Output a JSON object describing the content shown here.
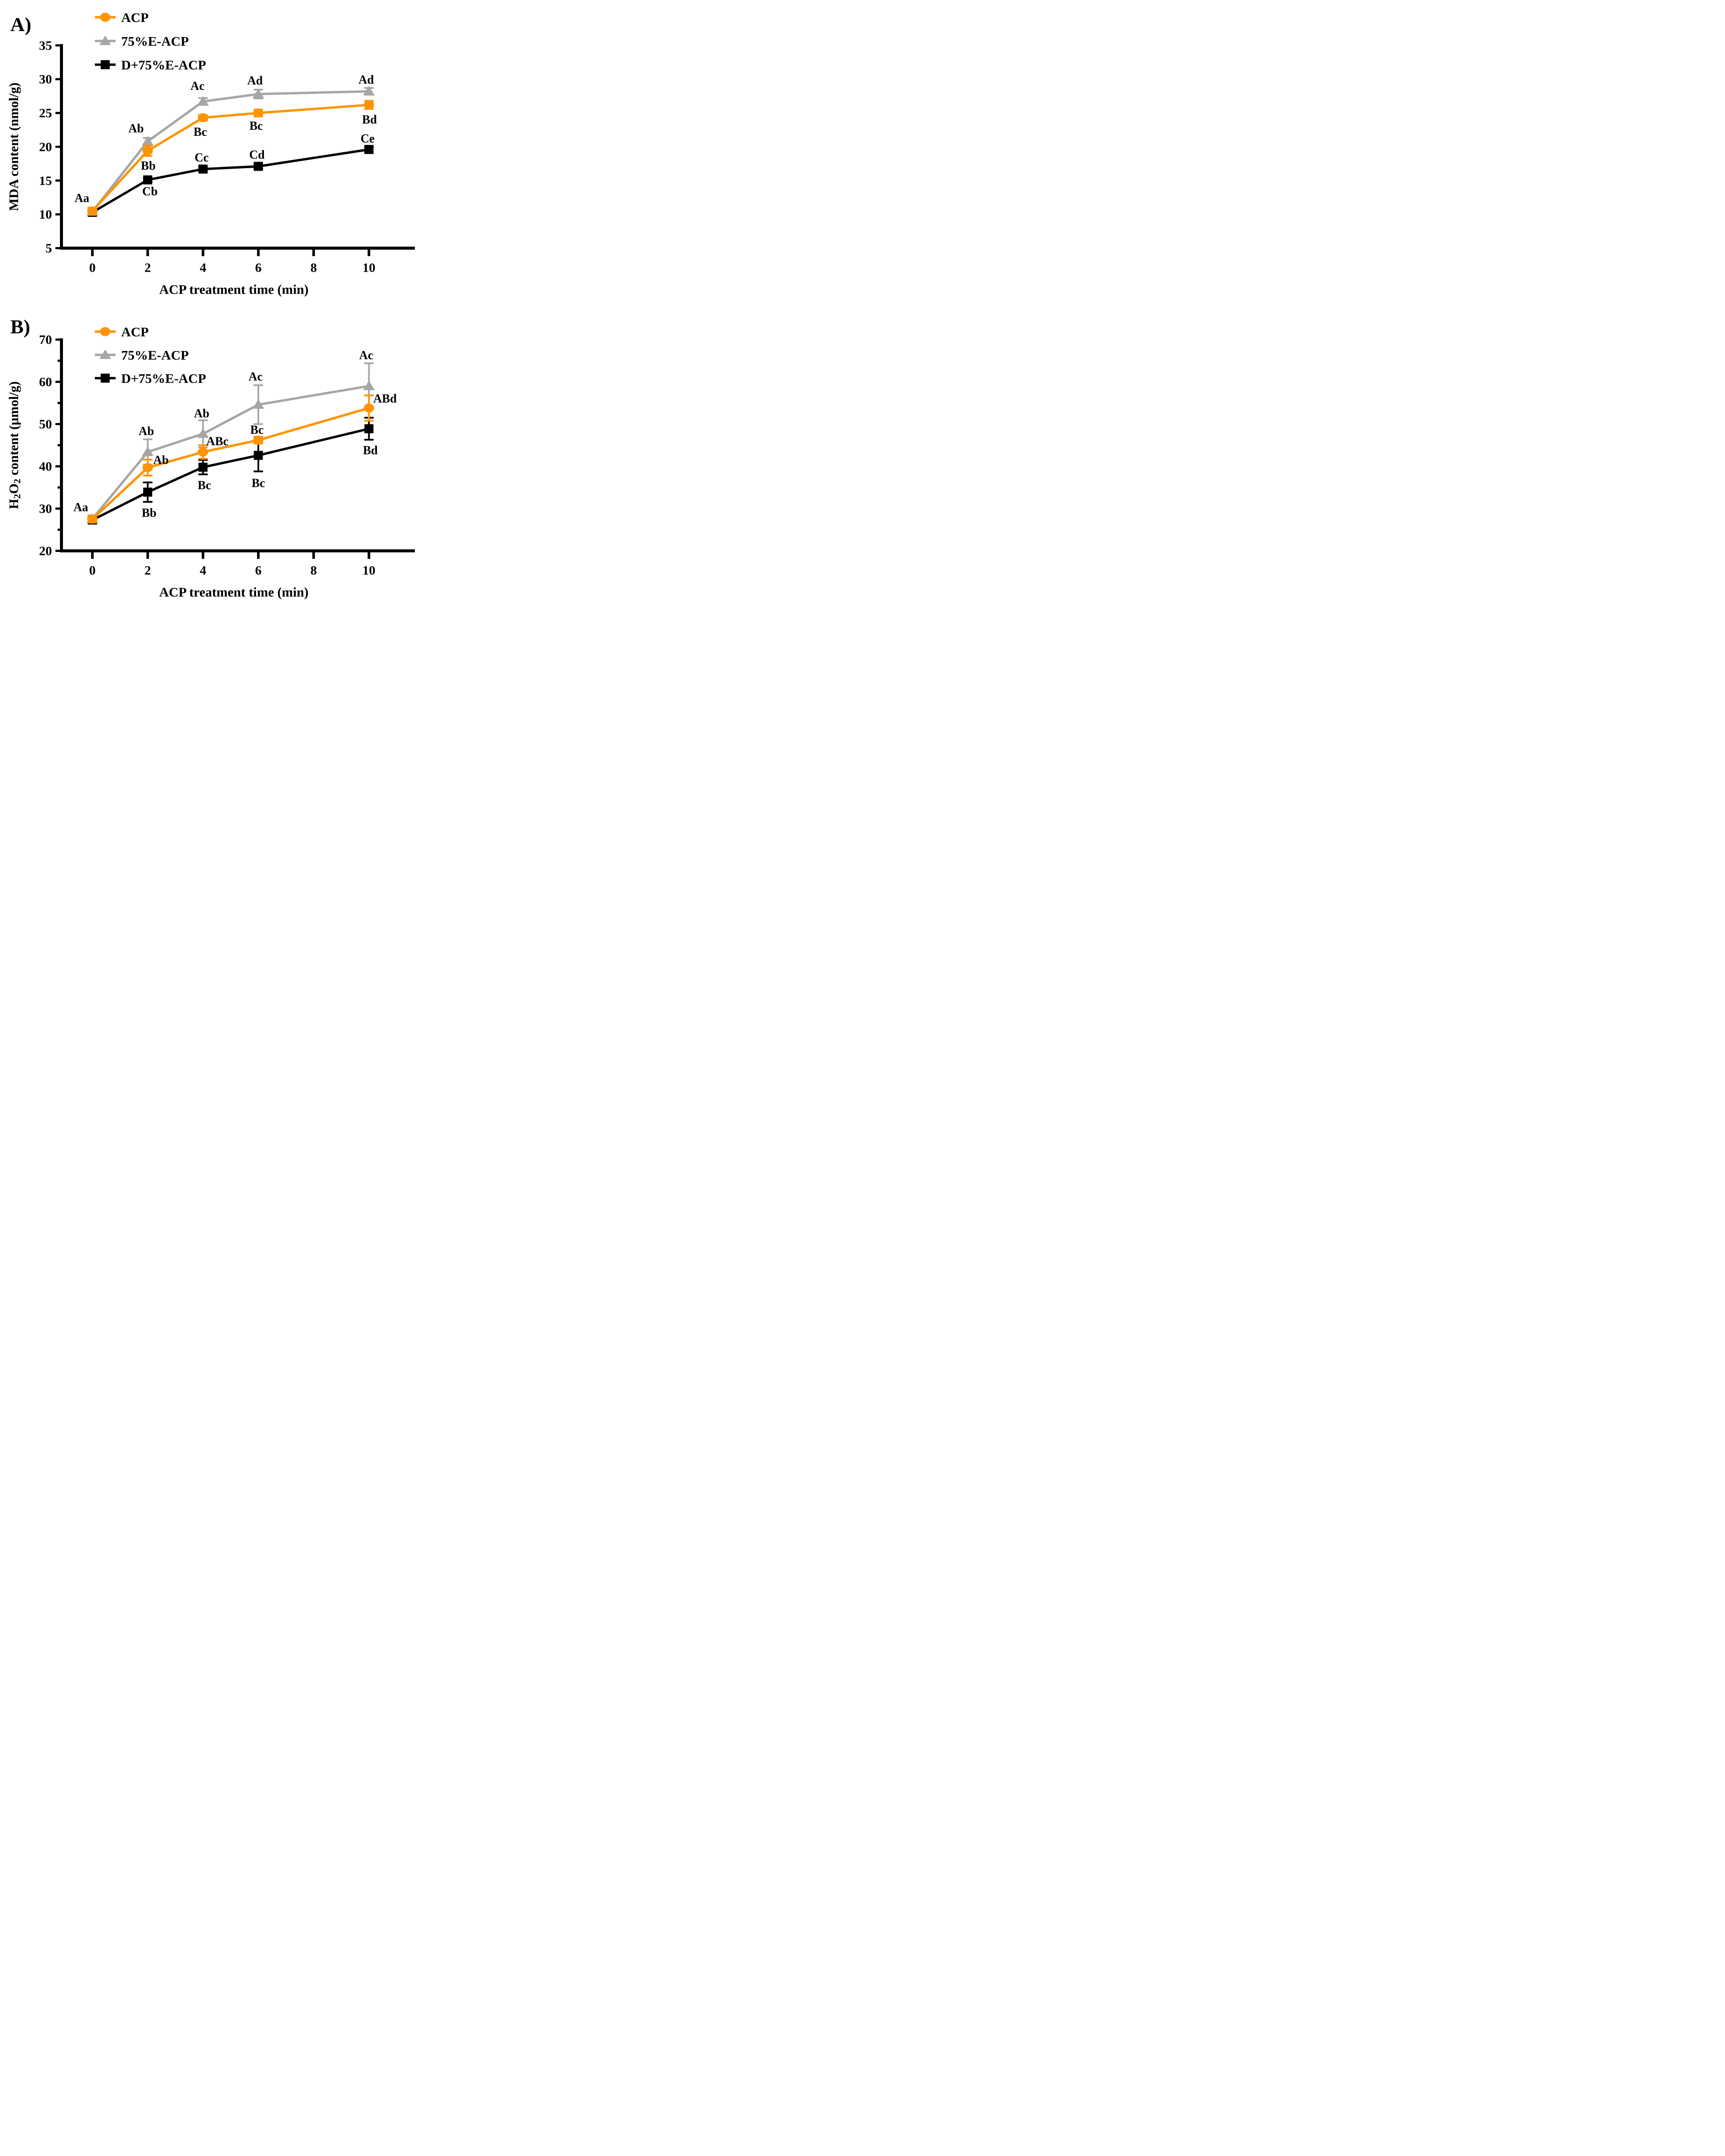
{
  "figure_title": "",
  "chart_data": [
    {
      "id": "A",
      "panel_label": "A)",
      "type": "line",
      "xlabel": "ACP treatment time (min)",
      "ylabel_parts": [
        {
          "t": "MDA content (nmol/g)",
          "sub": false
        }
      ],
      "x_ticks": [
        0,
        2,
        4,
        6,
        8,
        10
      ],
      "x": [
        0,
        2,
        4,
        6,
        10
      ],
      "ylim": [
        5,
        35
      ],
      "y_major_step": 5,
      "y_minor_step": 0,
      "grid": "off",
      "legend_position": "top-left-inside",
      "series": [
        {
          "name": "D+75%E-ACP",
          "marker": "square",
          "color": "#000000",
          "values": [
            10.3,
            15.1,
            16.7,
            17.1,
            19.6
          ],
          "errors": [
            0.45,
            0.3,
            0.35,
            0.35,
            0.4
          ],
          "point_labels": [
            {
              "text": "Cb",
              "x": 2.08,
              "y": 13.4
            },
            {
              "text": "Cc",
              "x": 3.95,
              "y": 18.4
            },
            {
              "text": "Cd",
              "x": 5.95,
              "y": 18.8
            },
            {
              "text": "Ce",
              "x": 9.95,
              "y": 21.2
            }
          ]
        },
        {
          "name": "75%E-ACP",
          "marker": "triangle",
          "color": "#A6A6A6",
          "values": [
            10.4,
            20.8,
            26.7,
            27.8,
            28.2
          ],
          "errors": [
            0.4,
            0.5,
            0.5,
            0.65,
            0.5
          ],
          "point_labels": [
            {
              "text": "Ab",
              "x": 1.58,
              "y": 22.7
            },
            {
              "text": "Ac",
              "x": 3.8,
              "y": 29.0
            },
            {
              "text": "Ad",
              "x": 5.88,
              "y": 29.8
            },
            {
              "text": "Ad",
              "x": 9.9,
              "y": 29.9
            }
          ]
        },
        {
          "name": "ACP",
          "marker": "circle",
          "color": "#FF9300",
          "values": [
            10.5,
            19.4,
            24.3,
            25.0,
            26.2
          ],
          "errors": [
            0.5,
            0.75,
            0.4,
            0.5,
            0.6
          ],
          "point_labels": [
            {
              "text": "Bb",
              "x": 2.02,
              "y": 17.2
            },
            {
              "text": "Bc",
              "x": 3.9,
              "y": 22.2
            },
            {
              "text": "Bc",
              "x": 5.92,
              "y": 23.1
            },
            {
              "text": "Bd",
              "x": 10.02,
              "y": 24.0
            }
          ]
        }
      ],
      "shared_label": {
        "text": "Aa",
        "x": -0.38,
        "y": 12.4
      },
      "legend": [
        "ACP",
        "75%E-ACP",
        "D+75%E-ACP"
      ]
    },
    {
      "id": "B",
      "panel_label": "B)",
      "type": "line",
      "xlabel": "ACP treatment time (min)",
      "ylabel_parts": [
        {
          "t": "H",
          "sub": false
        },
        {
          "t": "2",
          "sub": true
        },
        {
          "t": "O",
          "sub": false
        },
        {
          "t": "2",
          "sub": true
        },
        {
          "t": " content (μmol/g)",
          "sub": false
        }
      ],
      "x_ticks": [
        0,
        2,
        4,
        6,
        8,
        10
      ],
      "x": [
        0,
        2,
        4,
        6,
        10
      ],
      "ylim": [
        20,
        70
      ],
      "y_major_step": 10,
      "y_minor_step": 5,
      "grid": "off",
      "legend_position": "top-left-inside",
      "series": [
        {
          "name": "D+75%E-ACP",
          "marker": "square",
          "color": "#000000",
          "values": [
            27.3,
            33.9,
            39.8,
            42.6,
            48.9
          ],
          "errors": [
            0.8,
            2.3,
            1.7,
            3.8,
            2.6
          ],
          "point_labels": [
            {
              "text": "Bb",
              "x": 2.05,
              "y": 29.0
            },
            {
              "text": "Bc",
              "x": 4.05,
              "y": 35.5
            },
            {
              "text": "Bc",
              "x": 6.0,
              "y": 36.0
            },
            {
              "text": "Bd",
              "x": 10.05,
              "y": 43.8
            }
          ]
        },
        {
          "name": "75%E-ACP",
          "marker": "triangle",
          "color": "#A6A6A6",
          "values": [
            27.6,
            43.4,
            47.7,
            54.6,
            59.0
          ],
          "errors": [
            0.8,
            3.0,
            3.2,
            4.6,
            5.4
          ],
          "point_labels": [
            {
              "text": "Ab",
              "x": 1.95,
              "y": 48.3
            },
            {
              "text": "Ab",
              "x": 3.95,
              "y": 52.5
            },
            {
              "text": "Ac",
              "x": 5.9,
              "y": 61.2
            },
            {
              "text": "Ac",
              "x": 9.9,
              "y": 66.3
            }
          ]
        },
        {
          "name": "ACP",
          "marker": "circle",
          "color": "#FF9300",
          "values": [
            27.5,
            39.7,
            43.4,
            46.2,
            53.8
          ],
          "errors": [
            0.8,
            1.9,
            1.6,
            0.8,
            3.0
          ],
          "point_labels": [
            {
              "text": "Ab",
              "x": 2.48,
              "y": 41.5
            },
            {
              "text": "ABc",
              "x": 4.52,
              "y": 45.9
            },
            {
              "text": "Bc",
              "x": 5.95,
              "y": 48.6
            },
            {
              "text": "ABd",
              "x": 10.58,
              "y": 56.0
            }
          ]
        }
      ],
      "shared_label": {
        "text": "Aa",
        "x": -0.42,
        "y": 30.3
      },
      "legend": [
        "ACP",
        "75%E-ACP",
        "D+75%E-ACP"
      ]
    }
  ]
}
